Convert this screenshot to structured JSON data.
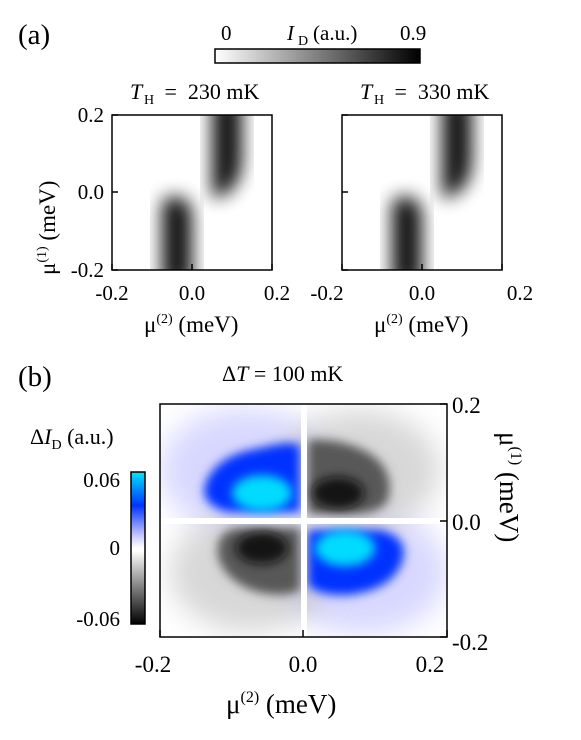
{
  "panel_a": {
    "label": "(a)",
    "colorbar": {
      "min_label": "0",
      "max_label": "0.9",
      "title_var": "I",
      "title_sub": "D",
      "title_unit": " (a.u.)"
    },
    "xlabel_mu": "μ",
    "xlabel_sup": "(2)",
    "xlabel_unit": " (meV)",
    "ylabel_mu": "μ",
    "ylabel_sup": "(1)",
    "ylabel_unit": " (meV)",
    "xticks": [
      "-0.2",
      "0.0",
      "0.2"
    ],
    "yticks": [
      "0.2",
      "0.0",
      "-0.2"
    ],
    "left_title": {
      "var": "T",
      "sub": "H",
      "value": " =  230 mK"
    },
    "right_title": {
      "var": "T",
      "sub": "H",
      "value": " =  330 mK"
    }
  },
  "panel_b": {
    "label": "(b)",
    "title_delta": "Δ",
    "title_var": "T",
    "title_value": " = 100 mK",
    "colorbar": {
      "title_delta": "Δ",
      "title_var": "I",
      "title_sub": "D",
      "title_unit": " (a.u.)",
      "ticks": [
        "0.06",
        "0",
        "-0.06"
      ]
    },
    "xticks": [
      "-0.2",
      "0.0",
      "0.2"
    ],
    "yticks": [
      "0.2",
      "0.0",
      "-0.2"
    ],
    "xlabel_mu": "μ",
    "xlabel_sup": "(2)",
    "xlabel_unit": " (meV)",
    "ylabel_mu": "μ",
    "ylabel_sup": "(1)",
    "ylabel_unit": " (meV)"
  },
  "colors": {
    "positive": "#0033ff",
    "positive_peak": "#00e5ff",
    "negative": "#000000",
    "zero": "#ffffff"
  },
  "chart_data": [
    {
      "type": "heatmap",
      "title": "T_H = 230 mK",
      "xlabel": "μ(2) (meV)",
      "ylabel": "μ(1) (meV)",
      "xlim": [
        -0.2,
        0.2
      ],
      "ylim": [
        -0.2,
        0.2
      ],
      "colorbar": {
        "label": "I_D (a.u.)",
        "range": [
          0,
          0.9
        ],
        "colors": [
          "#ffffff",
          "#000000"
        ]
      },
      "features": [
        {
          "name": "upper band",
          "x_center": 0.045,
          "y_range": [
            0.0,
            0.2
          ],
          "peak": 0.9
        },
        {
          "name": "lower band",
          "x_center": -0.045,
          "y_range": [
            -0.2,
            0.0
          ],
          "peak": 0.9
        }
      ]
    },
    {
      "type": "heatmap",
      "title": "T_H = 330 mK",
      "xlabel": "μ(2) (meV)",
      "ylabel": "μ(1) (meV)",
      "xlim": [
        -0.2,
        0.2
      ],
      "ylim": [
        -0.2,
        0.2
      ],
      "colorbar": {
        "label": "I_D (a.u.)",
        "range": [
          0,
          0.9
        ],
        "colors": [
          "#ffffff",
          "#000000"
        ]
      },
      "features": [
        {
          "name": "upper band",
          "x_center": 0.045,
          "y_range": [
            0.0,
            0.2
          ],
          "peak": 0.9
        },
        {
          "name": "lower band",
          "x_center": -0.045,
          "y_range": [
            -0.2,
            0.0
          ],
          "peak": 0.9
        }
      ]
    },
    {
      "type": "heatmap",
      "title": "ΔT = 100 mK",
      "xlabel": "μ(2) (meV)",
      "ylabel": "μ(1) (meV)",
      "xlim": [
        -0.2,
        0.2
      ],
      "ylim": [
        -0.2,
        0.2
      ],
      "colorbar": {
        "label": "ΔI_D (a.u.)",
        "range": [
          -0.06,
          0.06
        ],
        "colors": [
          "#000000",
          "#ffffff",
          "#0033ff",
          "#00e5ff"
        ]
      },
      "features": [
        {
          "name": "upper-left lobe",
          "x": -0.06,
          "y": 0.06,
          "value": 0.06
        },
        {
          "name": "upper-right lobe",
          "x": 0.06,
          "y": 0.06,
          "value": -0.04
        },
        {
          "name": "lower-left lobe",
          "x": -0.06,
          "y": -0.06,
          "value": -0.04
        },
        {
          "name": "lower-right lobe",
          "x": 0.06,
          "y": -0.06,
          "value": 0.06
        }
      ]
    }
  ]
}
